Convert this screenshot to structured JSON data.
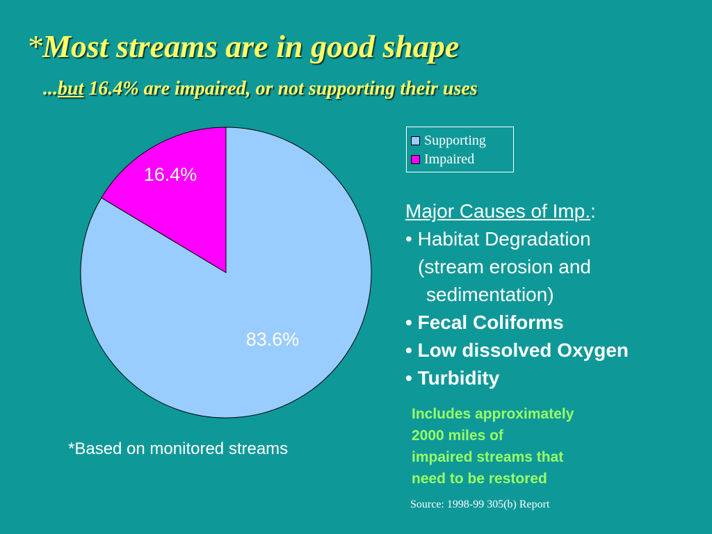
{
  "header": {
    "title_star": "*",
    "title": "Most streams are in good shape",
    "subtitle_prefix": "...",
    "subtitle_under": "but",
    "subtitle_rest": " 16.4% are impaired, or not supporting their uses"
  },
  "chart_data": {
    "type": "pie",
    "title": "",
    "categories": [
      "Supporting",
      "Impaired"
    ],
    "values": [
      83.6,
      16.4
    ],
    "data_labels": [
      "83.6%",
      "16.4%"
    ],
    "colors": [
      "#99ccff",
      "#ff00ff"
    ],
    "start_angle_deg": 0,
    "legend": "top-right",
    "legend_entries": [
      "Supporting",
      "Impaired"
    ]
  },
  "causes": {
    "heading": "Major Causes of Imp.",
    "heading_colon": ":",
    "bullet": "•",
    "items": [
      {
        "line1": "Habitat Degradation",
        "line2": "(stream erosion and",
        "line3": "sedimentation)"
      },
      {
        "line1": "Fecal Coliforms"
      },
      {
        "line1": "Low dissolved Oxygen"
      },
      {
        "line1": "Turbidity"
      }
    ]
  },
  "note": {
    "lines": [
      "Includes approximately",
      "2000 miles of",
      "impaired streams that",
      "need to be restored"
    ]
  },
  "footnote": "*Based on monitored streams",
  "source": "Source:  1998-99 305(b) Report"
}
